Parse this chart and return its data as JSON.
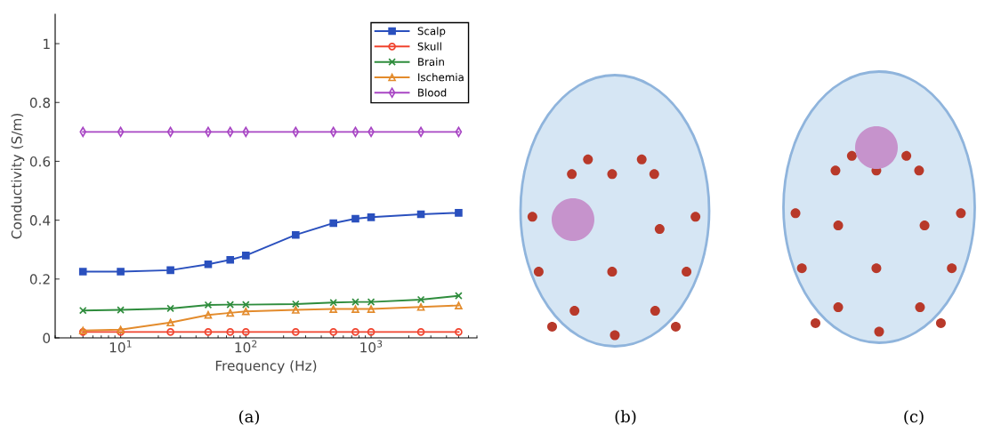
{
  "chart_data": {
    "type": "line",
    "xlabel": "Frequency (Hz)",
    "ylabel": "Conductivity (S/m)",
    "x": [
      5,
      10,
      25,
      50,
      75,
      100,
      250,
      500,
      750,
      1000,
      2500,
      5000
    ],
    "xlim": [
      3,
      7000
    ],
    "xticks": [
      {
        "value": 10,
        "label": "10$^{1}$"
      },
      {
        "value": 100,
        "label": "10$^{2}$"
      },
      {
        "value": 1000,
        "label": "10$^{3}$"
      }
    ],
    "ylim": [
      0,
      1.1
    ],
    "yticks": [
      0,
      0.2,
      0.4,
      0.6,
      0.8,
      1
    ],
    "log": "x",
    "grid": false,
    "legend": "top right",
    "line_style": "solid",
    "series": [
      {
        "name": "Scalp",
        "color": "#2a50be",
        "marker": "square",
        "values": [
          0.225,
          0.225,
          0.23,
          0.25,
          0.265,
          0.28,
          0.35,
          0.39,
          0.405,
          0.41,
          0.42,
          0.425
        ]
      },
      {
        "name": "Skull",
        "color": "#f0432e",
        "marker": "circle",
        "values": [
          0.02,
          0.02,
          0.02,
          0.02,
          0.02,
          0.02,
          0.02,
          0.02,
          0.02,
          0.02,
          0.02,
          0.02
        ]
      },
      {
        "name": "Brain",
        "color": "#2e8c3c",
        "marker": "cross",
        "values": [
          0.093,
          0.095,
          0.1,
          0.112,
          0.113,
          0.113,
          0.115,
          0.12,
          0.122,
          0.122,
          0.13,
          0.143
        ]
      },
      {
        "name": "Ischemia",
        "color": "#e38b2c",
        "marker": "triangle",
        "values": [
          0.025,
          0.028,
          0.052,
          0.078,
          0.085,
          0.09,
          0.095,
          0.098,
          0.098,
          0.098,
          0.105,
          0.11
        ]
      },
      {
        "name": "Blood",
        "color": "#a846c4",
        "marker": "diamond",
        "values": [
          0.7,
          0.7,
          0.7,
          0.7,
          0.7,
          0.7,
          0.7,
          0.7,
          0.7,
          0.7,
          0.7,
          0.7
        ]
      }
    ],
    "annotations": [
      "(a)",
      "(b)",
      "(c)"
    ]
  }
}
